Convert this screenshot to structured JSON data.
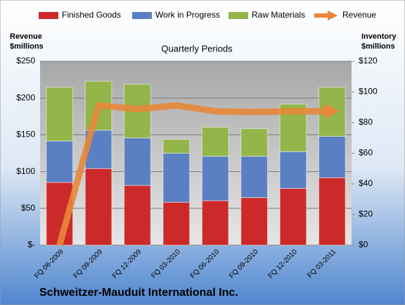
{
  "chart_data": {
    "type": "bar",
    "company": "Schweitzer-Mauduit International Inc.",
    "title": "Quarterly Periods",
    "y_label_line1": "Revenue",
    "y_label_line2": "$millions",
    "y2_label_line1": "Inventory",
    "y2_label_line2": "$millions",
    "categories": [
      "FQ 06-2009",
      "FQ 09-2009",
      "FQ 12-2009",
      "FQ 03-2010",
      "FQ 06-2010",
      "FQ 09-2010",
      "FQ 12-2010",
      "FQ 03-2011"
    ],
    "series": [
      {
        "name": "Finished Goods",
        "color": "#cc2a2a",
        "axis": "y2",
        "values": [
          41,
          50,
          39,
          28,
          29,
          31,
          37,
          44
        ]
      },
      {
        "name": "Work in Progress",
        "color": "#5a7fc2",
        "axis": "y2",
        "values": [
          27,
          25,
          31,
          32,
          29,
          27,
          24,
          27
        ]
      },
      {
        "name": "Raw Materials",
        "color": "#93b54a",
        "axis": "y2",
        "values": [
          35,
          32,
          35,
          9,
          19,
          18,
          31,
          32
        ]
      },
      {
        "name": "Revenue",
        "color": "#e8873a",
        "type": "line",
        "values": [
          0,
          190,
          185,
          190,
          182,
          181,
          182,
          182
        ]
      }
    ],
    "ylim": [
      0,
      250
    ],
    "yticks": [
      {
        "value": 0,
        "label": "$-"
      },
      {
        "value": 50,
        "label": "$50"
      },
      {
        "value": 100,
        "label": "$100"
      },
      {
        "value": 150,
        "label": "$150"
      },
      {
        "value": 200,
        "label": "$200"
      },
      {
        "value": 250,
        "label": "$250"
      }
    ],
    "y2lim": [
      0,
      120
    ],
    "y2ticks": [
      {
        "value": 0,
        "label": "$0"
      },
      {
        "value": 20,
        "label": "$20"
      },
      {
        "value": 40,
        "label": "$40"
      },
      {
        "value": 60,
        "label": "$60"
      },
      {
        "value": 80,
        "label": "$80"
      },
      {
        "value": 100,
        "label": "$100"
      },
      {
        "value": 120,
        "label": "$120"
      }
    ],
    "grid": true,
    "stacked": true
  }
}
